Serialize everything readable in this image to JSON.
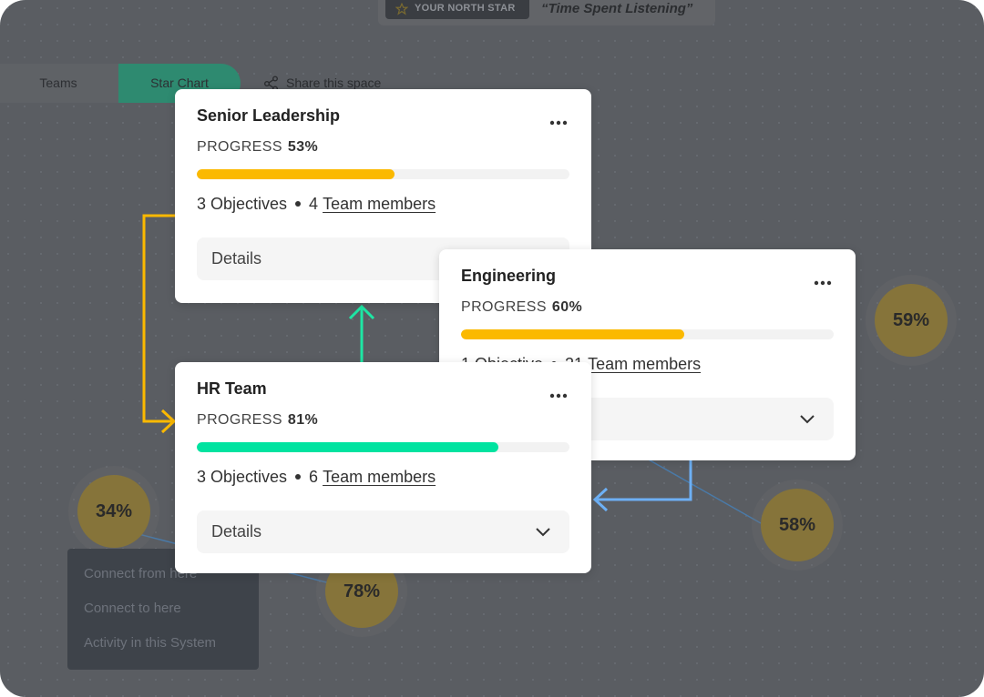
{
  "header": {
    "badge": "YOUR NORTH STAR",
    "north_star": "“Time Spent Listening”"
  },
  "tabs": [
    "Teams",
    "Star Chart"
  ],
  "share": "Share this space",
  "cards": [
    {
      "title": "Senior Leadership",
      "progress_heading": "PROGRESS",
      "progress": 53,
      "progress_label": "53%",
      "bar_color": "#fbb900",
      "objectives": "3 Objectives",
      "members_count": "4",
      "members_link": "Team members",
      "details": "Details"
    },
    {
      "title": "Engineering",
      "progress_heading": "PROGRESS",
      "progress": 60,
      "progress_label": "60%",
      "bar_color": "#fbb900",
      "objectives": "1 Objective",
      "members_count": "21",
      "members_link": "Team members"
    },
    {
      "title": "HR Team",
      "progress_heading": "PROGRESS",
      "progress": 81,
      "progress_label": "81%",
      "bar_color": "#00e3a0",
      "objectives": "3 Objectives",
      "members_count": "6",
      "members_link": "Team members",
      "details": "Details"
    }
  ],
  "nodes": [
    "59%",
    "34%",
    "58%",
    "78%"
  ],
  "context_menu": [
    "Connect from here",
    "Connect to here",
    "Activity in this System"
  ]
}
